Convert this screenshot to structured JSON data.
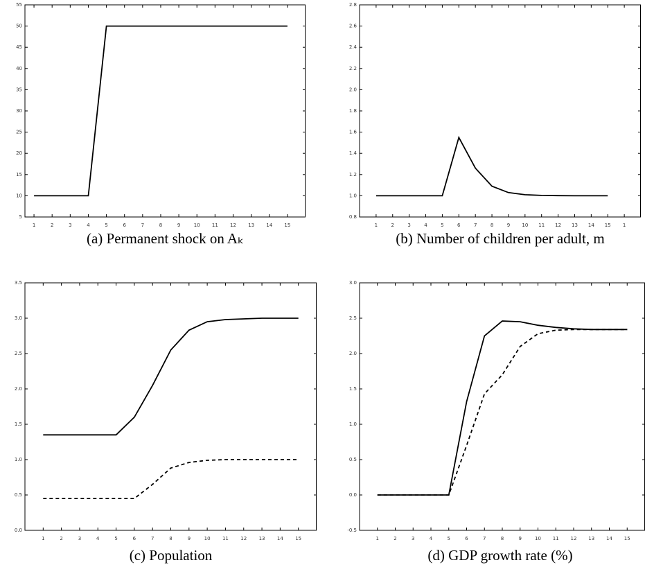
{
  "chart_data": [
    {
      "type": "line",
      "title": "(a) Permanent shock on Aₖ",
      "x": [
        1,
        2,
        3,
        4,
        5,
        6,
        7,
        8,
        9,
        10,
        11,
        12,
        13,
        14,
        15
      ],
      "xlim": [
        0.5,
        16
      ],
      "xticks": [
        1,
        2,
        3,
        4,
        5,
        6,
        7,
        8,
        9,
        10,
        11,
        12,
        13,
        14,
        15
      ],
      "ylim": [
        5,
        55
      ],
      "yticks": [
        5,
        10,
        15,
        20,
        25,
        30,
        35,
        40,
        45,
        50,
        55
      ],
      "series": [
        {
          "color": "#000000",
          "dash": "solid",
          "values": [
            10,
            10,
            10,
            10,
            50,
            50,
            50,
            50,
            50,
            50,
            50,
            50,
            50,
            50,
            50
          ]
        }
      ]
    },
    {
      "type": "line",
      "title": "(b) Number of children per adult, m",
      "x": [
        1,
        2,
        3,
        4,
        5,
        6,
        7,
        8,
        9,
        10,
        11,
        12,
        13,
        14,
        15
      ],
      "xlim": [
        0,
        17
      ],
      "xticks": [
        1,
        2,
        3,
        4,
        5,
        6,
        7,
        8,
        9,
        10,
        11,
        12,
        13,
        14,
        15,
        {
          "value": 16,
          "label": "1"
        }
      ],
      "ylim": [
        0.8,
        2.8
      ],
      "yticks": [
        0.8,
        {
          "value": 1,
          "label": "1.0"
        },
        1.2,
        1.4,
        1.6,
        1.8,
        {
          "value": 2,
          "label": "2.0"
        },
        2.2,
        2.4,
        2.6,
        2.8
      ],
      "series": [
        {
          "color": "#000000",
          "dash": "solid",
          "values": [
            1,
            1,
            1,
            1,
            1,
            1.55,
            1.26,
            1.09,
            1.03,
            1.01,
            1.003,
            1.001,
            1,
            1,
            1
          ]
        }
      ]
    },
    {
      "type": "line",
      "title": "(c) Population",
      "x": [
        1,
        2,
        3,
        4,
        5,
        6,
        7,
        8,
        9,
        10,
        11,
        12,
        13,
        14,
        15
      ],
      "xlim": [
        0,
        16
      ],
      "xticks": [
        1,
        2,
        3,
        4,
        5,
        6,
        7,
        8,
        9,
        10,
        11,
        12,
        13,
        14,
        15
      ],
      "ylim": [
        0,
        3.5
      ],
      "yticks": [
        {
          "value": 0,
          "label": "0.0"
        },
        0.5,
        {
          "value": 1,
          "label": "1.0"
        },
        1.5,
        {
          "value": 2,
          "label": "2.0"
        },
        2.5,
        {
          "value": 3,
          "label": "3.0"
        },
        3.5
      ],
      "series": [
        {
          "color": "#000000",
          "dash": "solid",
          "values": [
            1.35,
            1.35,
            1.35,
            1.35,
            1.35,
            1.6,
            2.05,
            2.55,
            2.83,
            2.95,
            2.98,
            2.99,
            3,
            3,
            3
          ]
        },
        {
          "color": "#000000",
          "dash": "dashed",
          "values": [
            0.45,
            0.45,
            0.45,
            0.45,
            0.45,
            0.45,
            0.65,
            0.88,
            0.96,
            0.99,
            1,
            1,
            1,
            1,
            1
          ]
        }
      ]
    },
    {
      "type": "line",
      "title": "(d) GDP growth rate (%)",
      "x": [
        1,
        2,
        3,
        4,
        5,
        6,
        7,
        8,
        9,
        10,
        11,
        12,
        13,
        14,
        15
      ],
      "xlim": [
        0,
        16
      ],
      "xticks": [
        1,
        2,
        3,
        4,
        5,
        6,
        7,
        8,
        9,
        10,
        11,
        12,
        13,
        14,
        15
      ],
      "ylim": [
        -0.5,
        3
      ],
      "yticks": [
        -0.5,
        {
          "value": 0,
          "label": "0.0"
        },
        0.5,
        {
          "value": 1,
          "label": "1.0"
        },
        1.5,
        {
          "value": 2,
          "label": "2.0"
        },
        2.5,
        {
          "value": 3,
          "label": "3.0"
        }
      ],
      "series": [
        {
          "color": "#000000",
          "dash": "solid",
          "values": [
            0,
            0,
            0,
            0,
            0,
            1.32,
            2.25,
            2.46,
            2.45,
            2.4,
            2.37,
            2.35,
            2.34,
            2.34,
            2.34
          ]
        },
        {
          "color": "#000000",
          "dash": "dashed",
          "values": [
            0,
            0,
            0,
            0,
            0,
            0.7,
            1.43,
            1.7,
            2.1,
            2.28,
            2.33,
            2.34,
            2.34,
            2.34,
            2.34
          ]
        }
      ]
    }
  ]
}
